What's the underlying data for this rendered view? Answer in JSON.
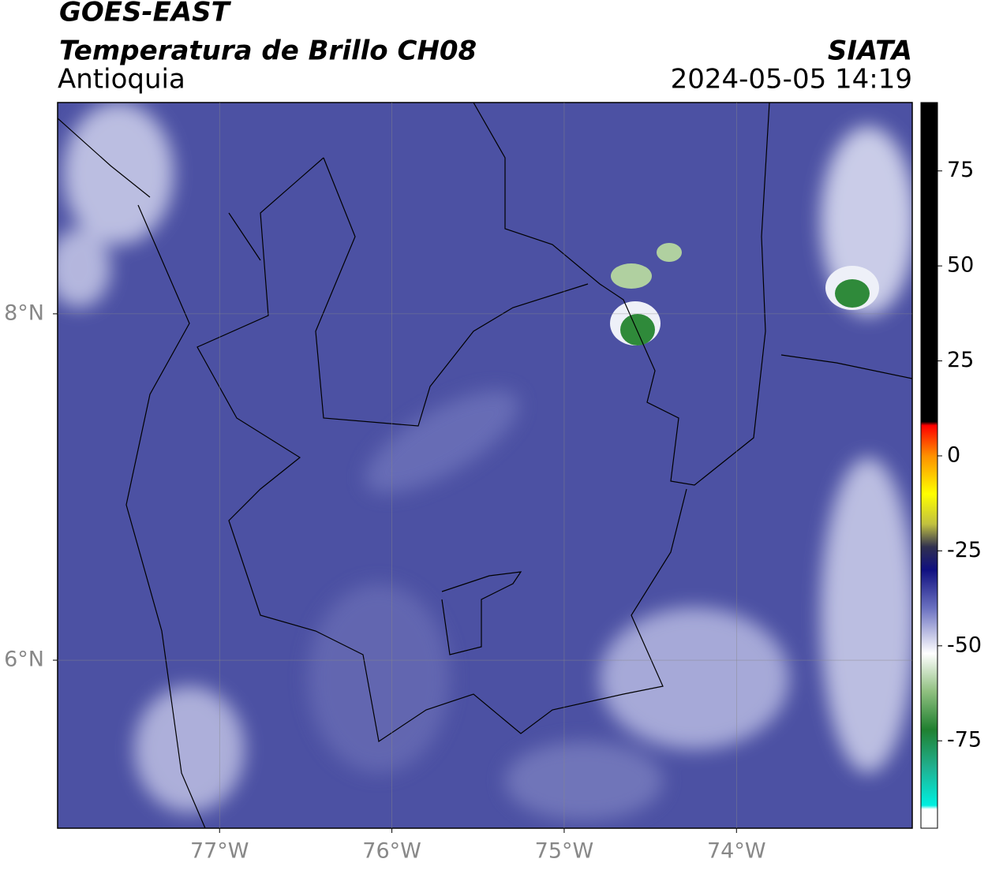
{
  "header": {
    "satellite": "GOES-EAST",
    "product": "Temperatura de Brillo CH08",
    "region": "Antioquia",
    "source": "SIATA",
    "datetime": "2024-05-05 14:19"
  },
  "map": {
    "xlim": [
      -77.94,
      -72.98
    ],
    "ylim": [
      5.03,
      9.22
    ],
    "xticks": [
      {
        "value": -77,
        "label": "77°W"
      },
      {
        "value": -76,
        "label": "76°W"
      },
      {
        "value": -75,
        "label": "75°W"
      },
      {
        "value": -74,
        "label": "74°W"
      }
    ],
    "yticks": [
      {
        "value": 8,
        "label": "8°N"
      },
      {
        "value": 6,
        "label": "6°N"
      }
    ],
    "grid": true
  },
  "colorbar": {
    "lim": [
      -98,
      93
    ],
    "ticks": [
      75,
      50,
      25,
      0,
      -25,
      -50,
      -75
    ],
    "colormap": [
      {
        "value": -98,
        "color": "#ffffff"
      },
      {
        "value": -93,
        "color": "#ffffff"
      },
      {
        "value": -92,
        "color": "#00f0e0"
      },
      {
        "value": -82,
        "color": "#20b090"
      },
      {
        "value": -72,
        "color": "#208030"
      },
      {
        "value": -62,
        "color": "#90c080"
      },
      {
        "value": -52,
        "color": "#ffffff"
      },
      {
        "value": -40,
        "color": "#6a70c0"
      },
      {
        "value": -30,
        "color": "#101080"
      },
      {
        "value": -24,
        "color": "#303050"
      },
      {
        "value": -18,
        "color": "#c0c040"
      },
      {
        "value": -10,
        "color": "#ffff00"
      },
      {
        "value": 0,
        "color": "#ff9000"
      },
      {
        "value": 8,
        "color": "#ff0000"
      },
      {
        "value": 9,
        "color": "#000000"
      },
      {
        "value": 93,
        "color": "#000000"
      }
    ]
  }
}
